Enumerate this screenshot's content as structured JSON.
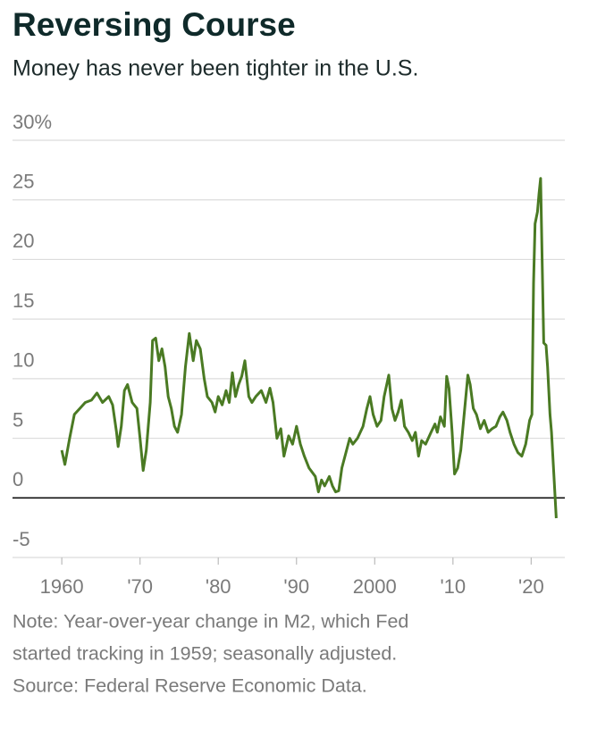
{
  "chart_data": {
    "type": "line",
    "title": "Reversing Course",
    "subtitle": "Money has never been tighter in the U.S.",
    "notes": [
      "Note: Year-over-year change in M2, which Fed",
      "started tracking in 1959; seasonally adjusted.",
      "Source: Federal Reserve Economic Data."
    ],
    "color": "#4a7a23",
    "grid": true,
    "xlim": [
      1953.7,
      2024.3
    ],
    "xticks": [
      1960,
      {
        "value": 1970,
        "label": "'70"
      },
      {
        "value": 1980,
        "label": "'80"
      },
      {
        "value": 1990,
        "label": "'90"
      },
      2000,
      {
        "value": 2010,
        "label": "'10"
      },
      {
        "value": 2020,
        "label": "'20"
      }
    ],
    "ylim": [
      -5,
      30
    ],
    "yticks": [
      -5,
      0,
      5,
      10,
      15,
      20,
      25,
      {
        "value": 30,
        "label": "30%"
      }
    ],
    "x": [
      1960.0,
      1960.4,
      1961.0,
      1961.6,
      1962.3,
      1963.0,
      1963.8,
      1964.5,
      1965.2,
      1966.0,
      1966.5,
      1967.0,
      1967.2,
      1967.6,
      1968.0,
      1968.4,
      1969.0,
      1969.6,
      1970.0,
      1970.4,
      1970.8,
      1971.3,
      1971.6,
      1972.0,
      1972.4,
      1972.8,
      1973.2,
      1973.6,
      1974.0,
      1974.4,
      1974.8,
      1975.3,
      1975.8,
      1976.3,
      1976.8,
      1977.2,
      1977.7,
      1978.2,
      1978.6,
      1979.2,
      1979.6,
      1980.0,
      1980.5,
      1981.0,
      1981.4,
      1981.8,
      1982.2,
      1982.6,
      1983.0,
      1983.4,
      1983.9,
      1984.3,
      1984.8,
      1985.5,
      1986.1,
      1986.6,
      1987.0,
      1987.5,
      1988.0,
      1988.4,
      1989.0,
      1989.5,
      1990.0,
      1990.5,
      1991.0,
      1991.6,
      1992.4,
      1992.8,
      1993.2,
      1993.6,
      1994.2,
      1994.6,
      1995.0,
      1995.4,
      1995.8,
      1996.4,
      1996.8,
      1997.2,
      1997.8,
      1998.5,
      1999.0,
      1999.4,
      1999.8,
      2000.3,
      2000.8,
      2001.2,
      2001.8,
      2002.2,
      2002.6,
      2003.0,
      2003.4,
      2003.8,
      2004.3,
      2004.8,
      2005.2,
      2005.6,
      2006.0,
      2006.5,
      2007.2,
      2007.7,
      2008.0,
      2008.4,
      2008.9,
      2009.2,
      2009.5,
      2009.9,
      2010.2,
      2010.6,
      2011.0,
      2011.5,
      2011.9,
      2012.2,
      2012.6,
      2013.0,
      2013.5,
      2014.0,
      2014.5,
      2015.0,
      2015.5,
      2016.0,
      2016.4,
      2016.9,
      2017.3,
      2017.8,
      2018.3,
      2018.8,
      2019.3,
      2019.8,
      2020.1,
      2020.3,
      2020.5,
      2020.8,
      2021.0,
      2021.2,
      2021.4,
      2021.6,
      2021.9,
      2022.1,
      2022.4,
      2022.6,
      2022.9,
      2023.2
    ],
    "values": [
      4,
      2.8,
      5,
      7,
      7.5,
      8,
      8.2,
      8.8,
      8,
      8.5,
      7.8,
      5.5,
      4.3,
      6,
      9,
      9.5,
      8,
      7.5,
      5,
      2.3,
      4,
      8,
      13.2,
      13.4,
      11.5,
      12.5,
      11,
      8.5,
      7.5,
      6,
      5.5,
      7,
      11,
      13.8,
      11.5,
      13.2,
      12.5,
      10,
      8.5,
      8,
      7.2,
      8.5,
      7.8,
      9,
      8,
      10.5,
      8.5,
      9.5,
      10.2,
      11.5,
      8.5,
      8,
      8.5,
      9,
      8,
      9.2,
      8,
      5,
      5.8,
      3.5,
      5.2,
      4.5,
      6,
      4.5,
      3.5,
      2.5,
      1.8,
      0.5,
      1.5,
      1.0,
      1.8,
      1.0,
      0.5,
      0.6,
      2.5,
      4,
      5,
      4.5,
      5,
      6,
      7.5,
      8.5,
      7,
      6,
      6.5,
      8.5,
      10.3,
      7.5,
      6.5,
      7.2,
      8.2,
      6,
      5.5,
      4.8,
      5.5,
      3.5,
      4.8,
      4.5,
      5.5,
      6.2,
      5.5,
      6.8,
      6,
      10.2,
      9.2,
      5.5,
      2,
      2.5,
      4,
      7.5,
      10.3,
      9.5,
      7.5,
      7,
      5.8,
      6.5,
      5.5,
      5.8,
      6,
      6.8,
      7.2,
      6.5,
      5.5,
      4.5,
      3.8,
      3.5,
      4.5,
      6.5,
      7,
      18,
      23,
      24,
      25.5,
      26.8,
      20,
      13,
      12.8,
      11,
      7,
      5.5,
      2,
      -1.7
    ]
  }
}
